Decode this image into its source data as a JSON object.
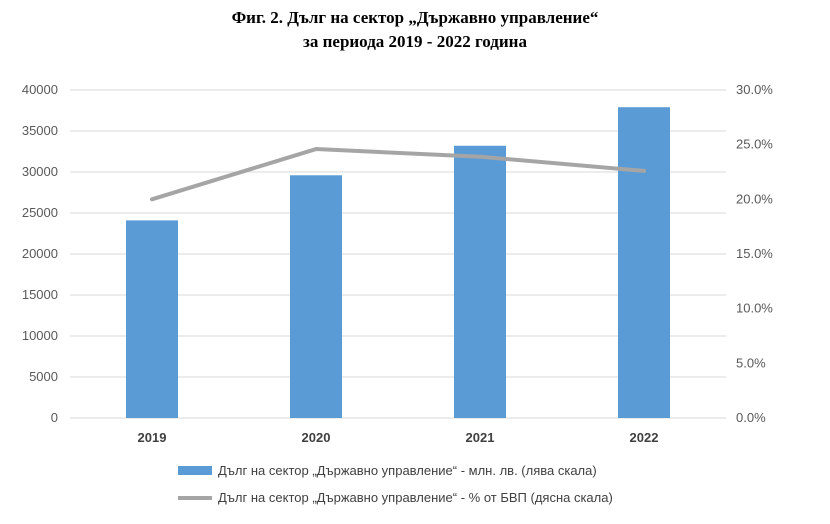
{
  "chart_data": {
    "type": "bar+line",
    "title_line1": "Фиг. 2. Дълг на сектор „Държавно управление“",
    "title_line2": "за периода 2019 - 2022 година",
    "categories": [
      "2019",
      "2020",
      "2021",
      "2022"
    ],
    "series": [
      {
        "name": "Дълг на сектор „Държавно управление“ - млн. лв. (лява скала)",
        "type": "bar",
        "axis": "left",
        "values": [
          24100,
          29600,
          33200,
          37900
        ]
      },
      {
        "name": "Дълг на сектор „Държавно управление“ - % от БВП (дясна скала)",
        "type": "line",
        "axis": "right",
        "values": [
          0.2,
          0.246,
          0.239,
          0.226
        ]
      }
    ],
    "left_axis": {
      "ylim": [
        0,
        40000
      ],
      "ticks": [
        "0",
        "5000",
        "10000",
        "15000",
        "20000",
        "25000",
        "30000",
        "35000",
        "40000"
      ]
    },
    "right_axis": {
      "ylim": [
        0,
        0.3
      ],
      "ticks": [
        "0.0%",
        "5.0%",
        "10.0%",
        "15.0%",
        "20.0%",
        "25.0%",
        "30.0%"
      ]
    },
    "grid": true,
    "legend_position": "bottom",
    "colors": {
      "bar": "#5b9bd5",
      "line": "#a5a5a5",
      "grid": "#d9d9d9"
    }
  }
}
